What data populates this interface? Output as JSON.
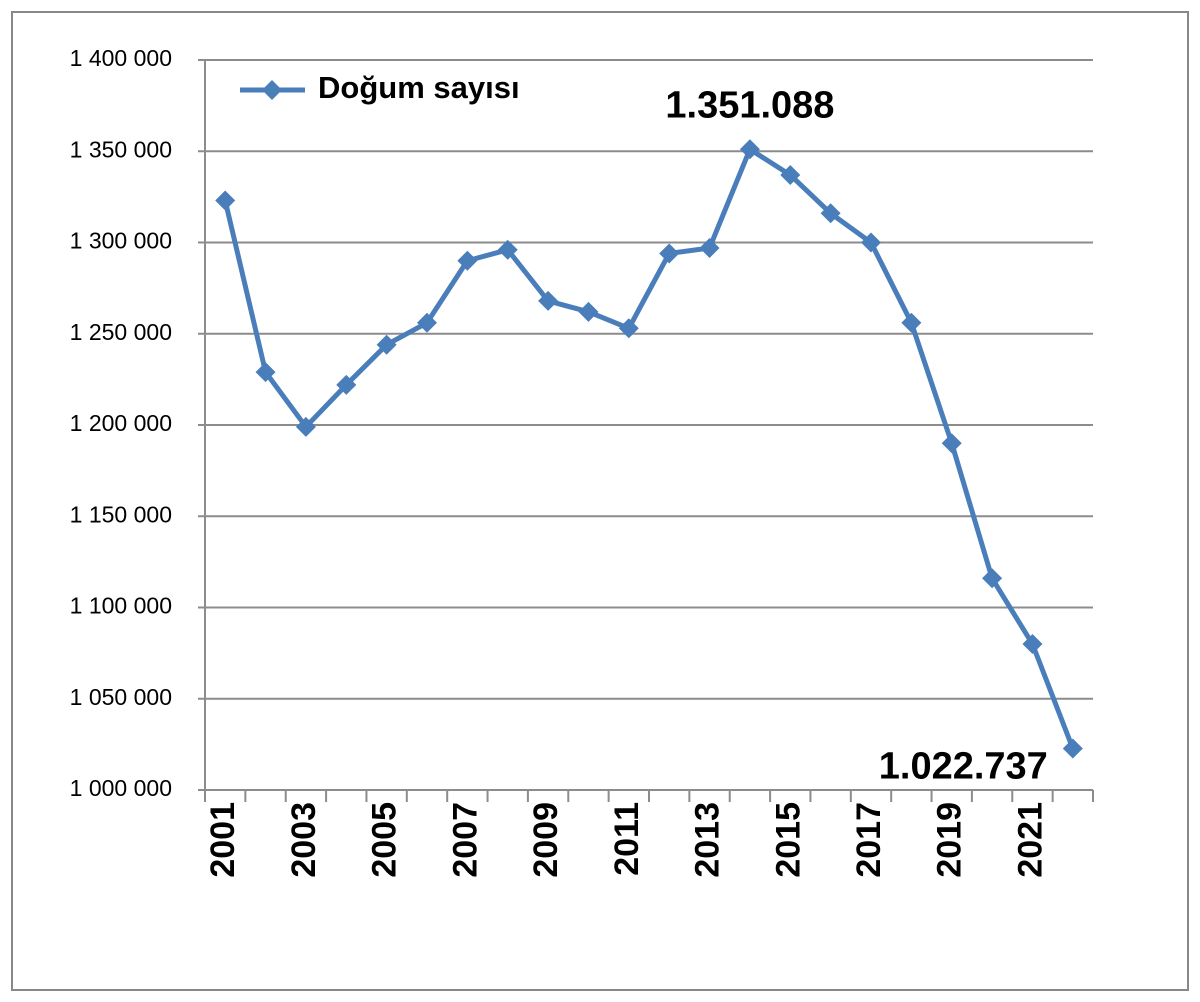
{
  "chart_data": {
    "type": "line",
    "categories": [
      "2001",
      null,
      "2003",
      null,
      "2005",
      null,
      "2007",
      null,
      "2009",
      null,
      "2011",
      null,
      "2013",
      null,
      "2015",
      null,
      "2017",
      null,
      "2019",
      null,
      "2021",
      null
    ],
    "series": [
      {
        "name": "Doğum sayısı",
        "color": "#4a7ebb",
        "values": [
          1323000,
          1229000,
          1199000,
          1222000,
          1244000,
          1256000,
          1290000,
          1296000,
          1268000,
          1262000,
          1253000,
          1294000,
          1297000,
          1351088,
          1337000,
          1316000,
          1300000,
          1256000,
          1190000,
          1116000,
          1080000,
          1022737
        ],
        "value_labels": [
          null,
          null,
          null,
          null,
          null,
          null,
          null,
          null,
          null,
          null,
          null,
          null,
          null,
          "1.351.088",
          null,
          null,
          null,
          null,
          null,
          null,
          null,
          "1.022.737"
        ]
      }
    ],
    "ylim": [
      1000000,
      1400000
    ],
    "yticks": [
      {
        "value": 1000000,
        "label": "1 000 000"
      },
      {
        "value": 1050000,
        "label": "1 050 000"
      },
      {
        "value": 1100000,
        "label": "1 100 000"
      },
      {
        "value": 1150000,
        "label": "1 150 000"
      },
      {
        "value": 1200000,
        "label": "1 200 000"
      },
      {
        "value": 1250000,
        "label": "1 250 000"
      },
      {
        "value": 1300000,
        "label": "1 300 000"
      },
      {
        "value": 1350000,
        "label": "1 350 000"
      },
      {
        "value": 1400000,
        "label": "1 400 000"
      }
    ],
    "grid": true,
    "legend": "top-left"
  }
}
